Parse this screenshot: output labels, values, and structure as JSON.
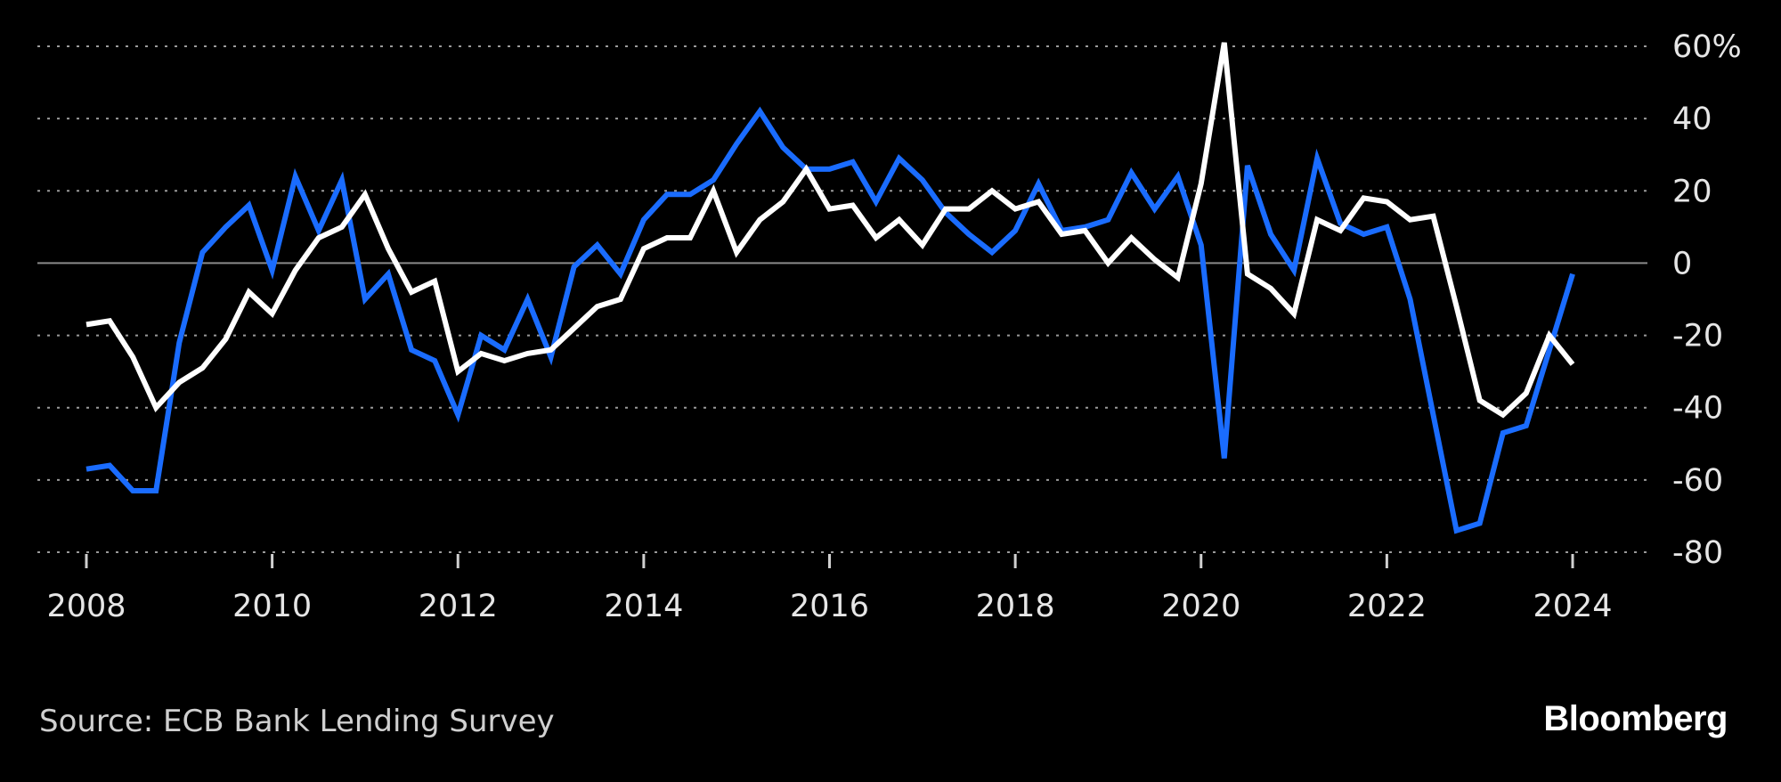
{
  "chart_data": {
    "type": "line",
    "xlabel": "",
    "ylabel": "",
    "y_unit_suffix": "%",
    "ylim": [
      -80,
      60
    ],
    "y_ticks": [
      60,
      40,
      20,
      0,
      -20,
      -40,
      -60,
      -80
    ],
    "y_tick_labels": [
      "60%",
      "40",
      "20",
      "0",
      "-20",
      "-40",
      "-60",
      "-80"
    ],
    "x_ticks": [
      2008,
      2010,
      2012,
      2014,
      2016,
      2018,
      2020,
      2022,
      2024
    ],
    "x_tick_labels": [
      "2008",
      "2010",
      "2012",
      "2014",
      "2016",
      "2018",
      "2020",
      "2022",
      "2024"
    ],
    "xlim": [
      2008,
      2024
    ],
    "grid": "horizontal dotted",
    "legend": "none",
    "series": [
      {
        "color": "#1a6cff",
        "x": [
          2008.0,
          2008.25,
          2008.5,
          2008.75,
          2009.0,
          2009.25,
          2009.5,
          2009.75,
          2010.0,
          2010.25,
          2010.5,
          2010.75,
          2011.0,
          2011.25,
          2011.5,
          2011.75,
          2012.0,
          2012.25,
          2012.5,
          2012.75,
          2013.0,
          2013.25,
          2013.5,
          2013.75,
          2014.0,
          2014.25,
          2014.5,
          2014.75,
          2015.0,
          2015.25,
          2015.5,
          2015.75,
          2016.0,
          2016.25,
          2016.5,
          2016.75,
          2017.0,
          2017.25,
          2017.5,
          2017.75,
          2018.0,
          2018.25,
          2018.5,
          2018.75,
          2019.0,
          2019.25,
          2019.5,
          2019.75,
          2020.0,
          2020.25,
          2020.5,
          2020.75,
          2021.0,
          2021.25,
          2021.5,
          2021.75,
          2022.0,
          2022.25,
          2022.5,
          2022.75,
          2023.0,
          2023.25,
          2023.5,
          2023.75,
          2024.0
        ],
        "y": [
          -57,
          -56,
          -63,
          -63,
          -22,
          3,
          10,
          16,
          -2,
          24,
          9,
          23,
          -10,
          -3,
          -24,
          -27,
          -42,
          -20,
          -24,
          -10,
          -26,
          -1,
          5,
          -3,
          12,
          19,
          19,
          23,
          33,
          42,
          32,
          26,
          26,
          28,
          17,
          29,
          23,
          14,
          8,
          3,
          9,
          22,
          9,
          10,
          12,
          25,
          15,
          24,
          5,
          -54,
          27,
          8,
          -2,
          29,
          11,
          8,
          10,
          -10,
          -42,
          -74,
          -72,
          -47,
          -45,
          -24,
          -3
        ]
      },
      {
        "color": "#ffffff",
        "x": [
          2008.0,
          2008.25,
          2008.5,
          2008.75,
          2009.0,
          2009.25,
          2009.5,
          2009.75,
          2010.0,
          2010.25,
          2010.5,
          2010.75,
          2011.0,
          2011.25,
          2011.5,
          2011.75,
          2012.0,
          2012.25,
          2012.5,
          2012.75,
          2013.0,
          2013.25,
          2013.5,
          2013.75,
          2014.0,
          2014.25,
          2014.5,
          2014.75,
          2015.0,
          2015.25,
          2015.5,
          2015.75,
          2016.0,
          2016.25,
          2016.5,
          2016.75,
          2017.0,
          2017.25,
          2017.5,
          2017.75,
          2018.0,
          2018.25,
          2018.5,
          2018.75,
          2019.0,
          2019.25,
          2019.5,
          2019.75,
          2020.0,
          2020.25,
          2020.5,
          2020.75,
          2021.0,
          2021.25,
          2021.5,
          2021.75,
          2022.0,
          2022.25,
          2022.5,
          2022.75,
          2023.0,
          2023.25,
          2023.5,
          2023.75,
          2024.0
        ],
        "y": [
          -17,
          -16,
          -26,
          -40,
          -33,
          -29,
          -21,
          -8,
          -14,
          -2,
          7,
          10,
          19,
          4,
          -8,
          -5,
          -30,
          -25,
          -27,
          -25,
          -24,
          -18,
          -12,
          -10,
          4,
          7,
          7,
          20,
          3,
          12,
          17,
          26,
          15,
          16,
          7,
          12,
          5,
          15,
          15,
          20,
          15,
          17,
          8,
          9,
          0,
          7,
          1,
          -4,
          22,
          61,
          -3,
          -7,
          -14,
          12,
          9,
          18,
          17,
          12,
          13,
          -12,
          -38,
          -42,
          -36,
          -20,
          -28
        ]
      }
    ]
  },
  "footer": {
    "source": "Source: ECB Bank Lending Survey",
    "brand": "Bloomberg"
  }
}
